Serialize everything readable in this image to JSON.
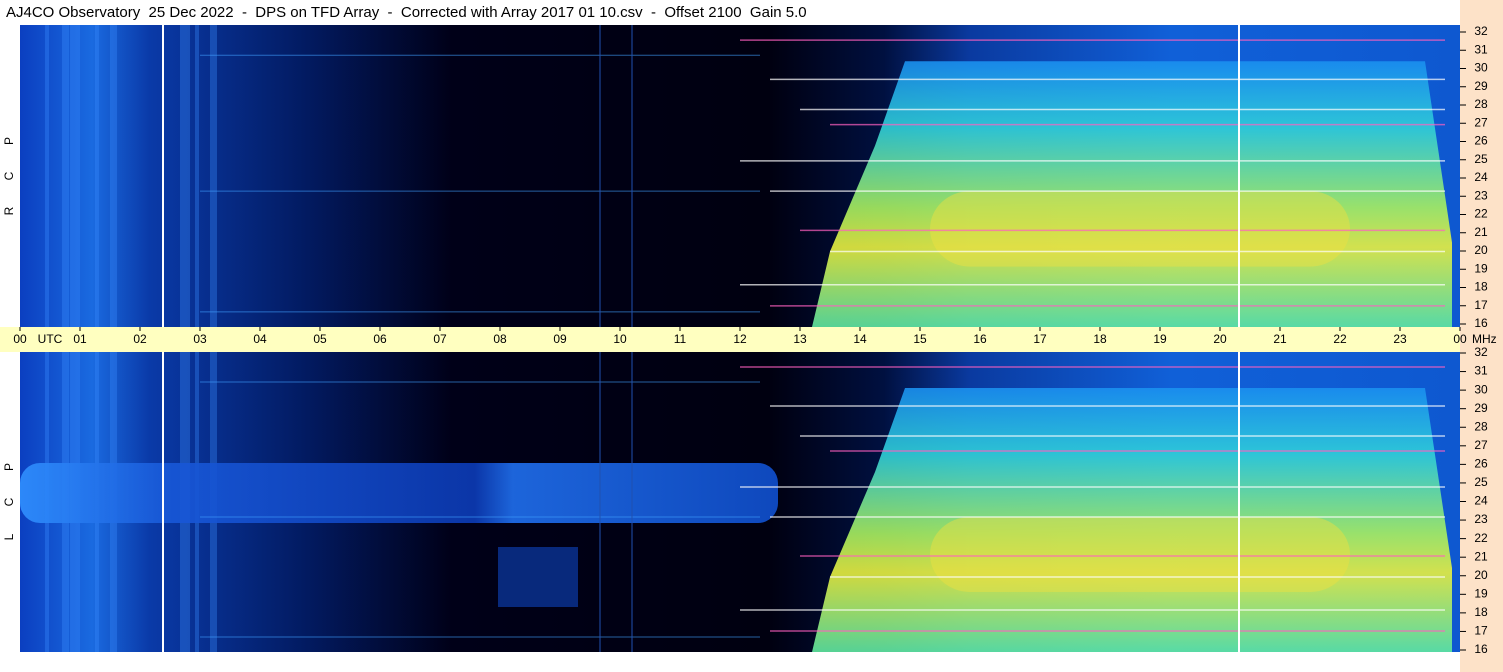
{
  "chart_data": {
    "type": "spectrogram",
    "title": "AJ4CO Observatory  25 Dec 2022  -  DPS on TFD Array  -  Corrected with Array 2017 01 10.csv  -  Offset 2100  Gain 5.0",
    "x_label": "UTC",
    "y_label": "MHz",
    "xlim": [
      0,
      24
    ],
    "xticks": [
      {
        "value": 0,
        "label": "00"
      },
      {
        "value": 1,
        "label": "01"
      },
      {
        "value": 2,
        "label": "02"
      },
      {
        "value": 3,
        "label": "03"
      },
      {
        "value": 4,
        "label": "04"
      },
      {
        "value": 5,
        "label": "05"
      },
      {
        "value": 6,
        "label": "06"
      },
      {
        "value": 7,
        "label": "07"
      },
      {
        "value": 8,
        "label": "08"
      },
      {
        "value": 9,
        "label": "09"
      },
      10,
      11,
      12,
      13,
      14,
      15,
      16,
      17,
      18,
      19,
      20,
      21,
      22,
      23,
      {
        "value": 24,
        "label": "00"
      }
    ],
    "ylim": [
      16,
      32
    ],
    "yticks": [
      16,
      17,
      18,
      19,
      20,
      21,
      22,
      23,
      24,
      25,
      26,
      27,
      28,
      29,
      30,
      31,
      32
    ],
    "panels": [
      {
        "letters": [
          "R",
          "C",
          "P"
        ]
      },
      {
        "letters": [
          "L",
          "C",
          "P"
        ]
      }
    ]
  }
}
